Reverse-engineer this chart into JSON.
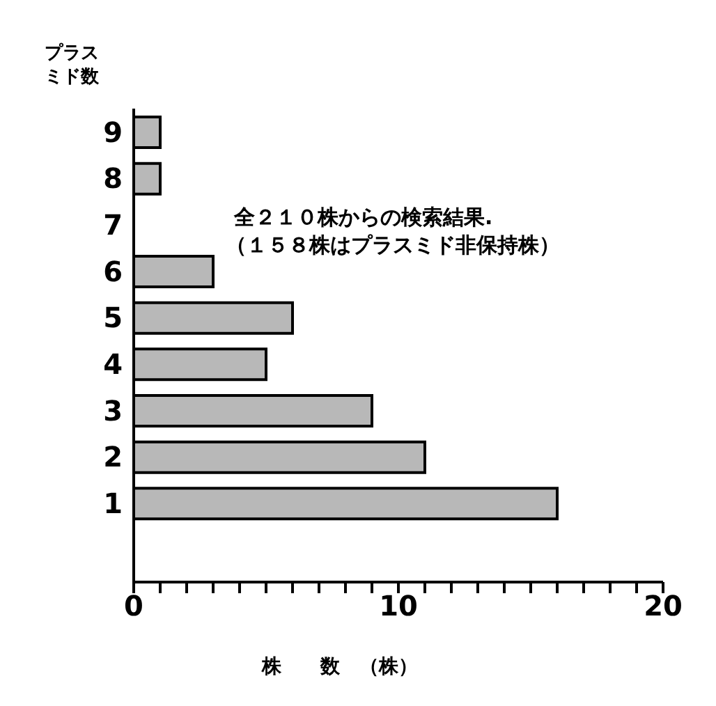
{
  "chart_data": {
    "type": "bar",
    "orientation": "horizontal",
    "ylabel": "プラスミド数",
    "xlabel": "株　　数　（株）",
    "annotations": [
      "全２１０株からの検索結果.",
      "（１５８株はプラスミド非保持株）"
    ],
    "categories": [
      "9",
      "8",
      "7",
      "6",
      "5",
      "4",
      "3",
      "2",
      "1"
    ],
    "values": [
      1,
      1,
      0,
      3,
      6,
      5,
      9,
      11,
      16
    ],
    "color": "#b8b8b8",
    "xlim": [
      0,
      20
    ],
    "xticks": [
      0,
      {
        "value": 1,
        "label": null
      },
      {
        "value": 2,
        "label": null
      },
      {
        "value": 3,
        "label": null
      },
      {
        "value": 4,
        "label": null
      },
      {
        "value": 5,
        "label": null
      },
      {
        "value": 6,
        "label": null
      },
      {
        "value": 7,
        "label": null
      },
      {
        "value": 8,
        "label": null
      },
      {
        "value": 9,
        "label": null
      },
      10,
      {
        "value": 11,
        "label": null
      },
      {
        "value": 12,
        "label": null
      },
      {
        "value": 13,
        "label": null
      },
      {
        "value": 14,
        "label": null
      },
      {
        "value": 15,
        "label": null
      },
      {
        "value": 16,
        "label": null
      },
      {
        "value": 17,
        "label": null
      },
      {
        "value": 18,
        "label": null
      },
      {
        "value": 19,
        "label": null
      },
      20
    ],
    "grid": false,
    "legend": false
  }
}
